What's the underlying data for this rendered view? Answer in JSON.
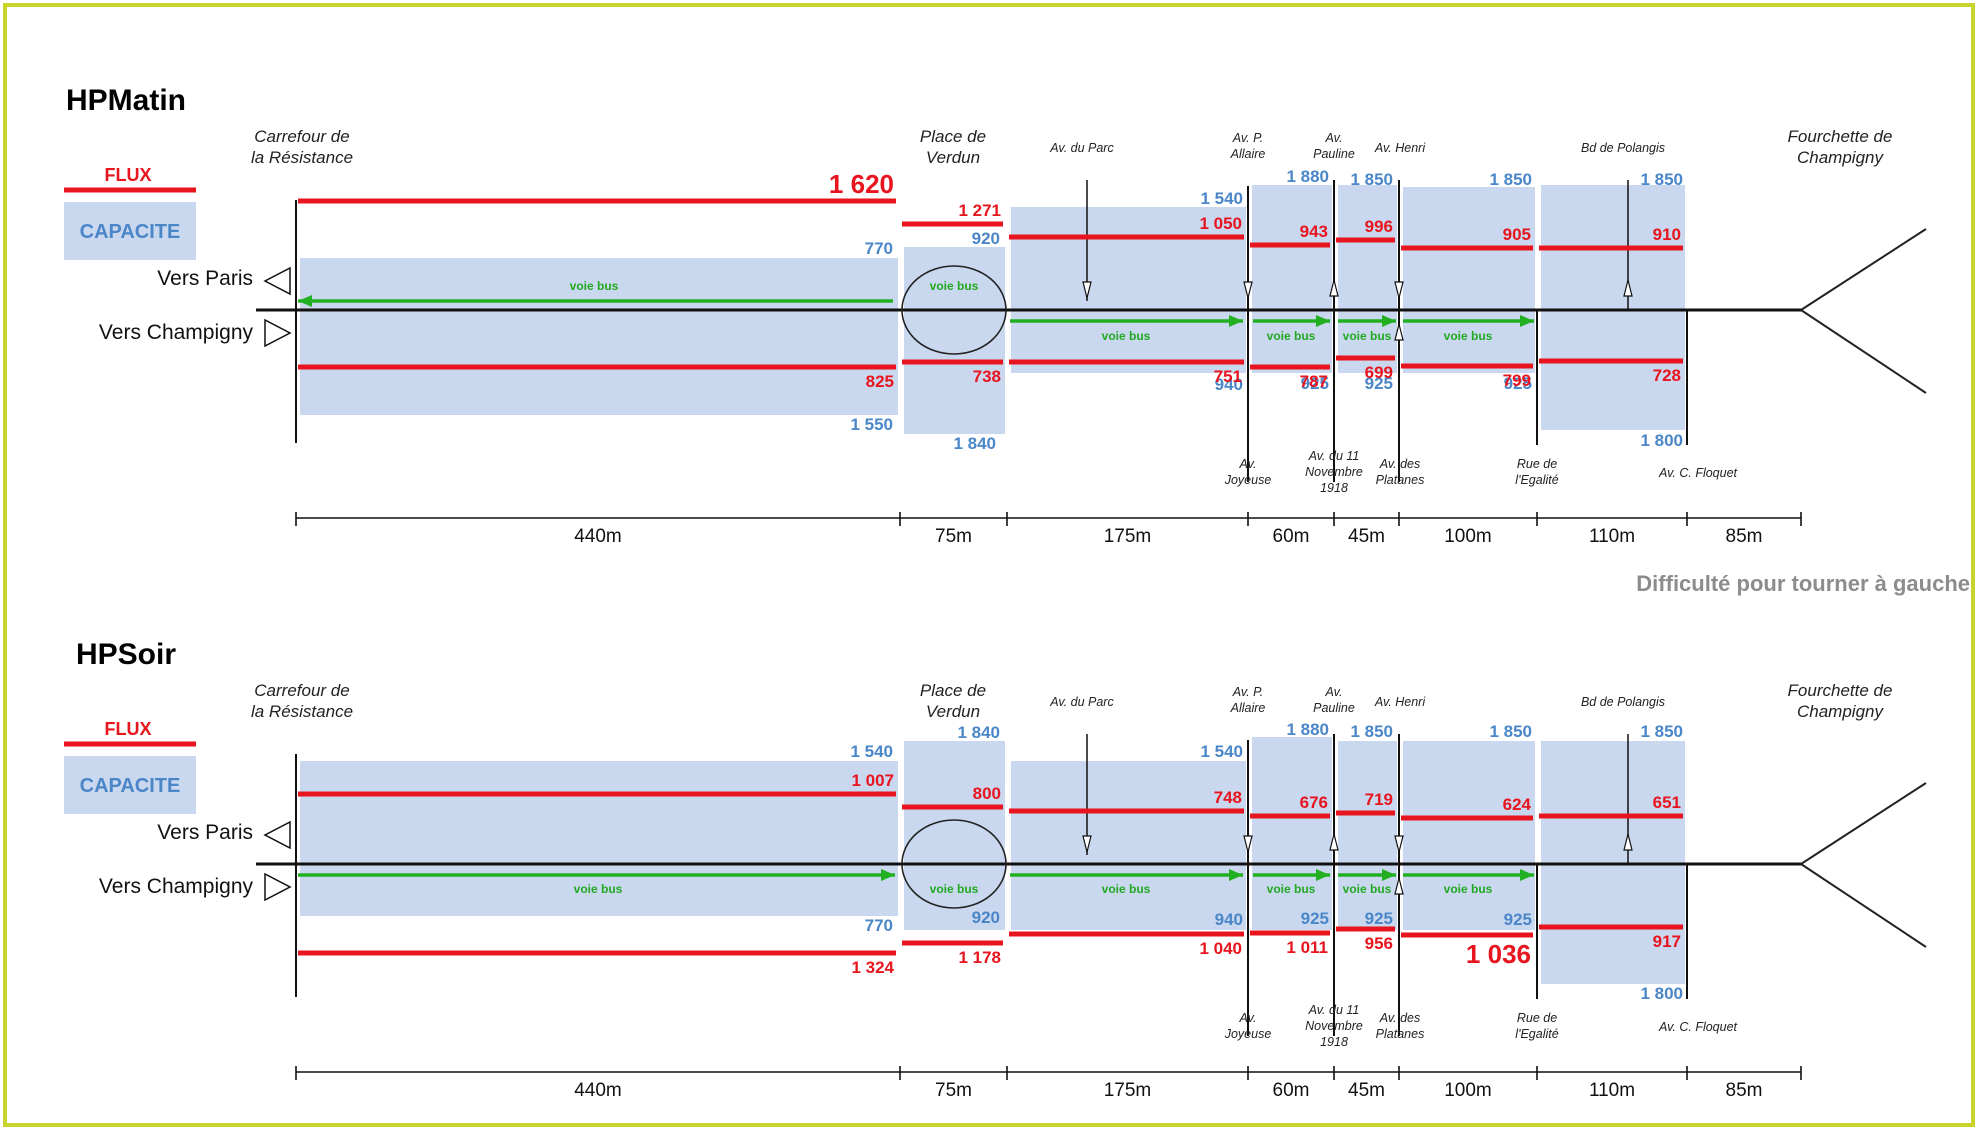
{
  "legend": {
    "flux": "FLUX",
    "capacite": "CAPACITE"
  },
  "directions": {
    "paris": "Vers Paris",
    "champigny": "Vers Champigny"
  },
  "bus_lane": "voie bus",
  "note": "Difficulté pour tourner à gauche",
  "colors": {
    "flux": "#e8141e",
    "capacite": "#c9d8ee",
    "capacite_text": "#4a86c8",
    "bus": "#22b022",
    "frame": "#c8d42a"
  },
  "nodes_top": [
    [
      "Carrefour de",
      "la Résistance"
    ],
    [
      "Place de",
      "Verdun"
    ],
    [
      "Av. du Parc"
    ],
    [
      "Av. P.",
      "Allaire"
    ],
    [
      "Av.",
      "Pauline"
    ],
    [
      "Av. Henri"
    ],
    [
      "Bd de Polangis"
    ],
    [
      "Fourchette de",
      "Champigny"
    ]
  ],
  "nodes_bottom": [
    [
      "Av.",
      "Joyeuse"
    ],
    [
      "Av. du 11",
      "Novembre",
      "1918"
    ],
    [
      "Av. des",
      "Platanes"
    ],
    [
      "Rue de",
      "l'Egalité"
    ],
    [
      "Av. C. Floquet"
    ]
  ],
  "distances": [
    "440m",
    "75m",
    "175m",
    "60m",
    "45m",
    "100m",
    "110m",
    "85m"
  ],
  "panels": [
    {
      "title": "HPMatin",
      "paris": {
        "cap": [
          "770",
          "920",
          "1 540",
          "1 880",
          "1 850",
          "1 850",
          "1 850"
        ],
        "flux": [
          "1 620",
          "1 271",
          "1 050",
          "943",
          "996",
          "905",
          "910"
        ]
      },
      "champigny": {
        "cap": [
          "1 550",
          "1 840",
          "940",
          "925",
          "925",
          "925",
          "1 800"
        ],
        "flux": [
          "825",
          "738",
          "751",
          "787",
          "699",
          "799",
          "728"
        ]
      }
    },
    {
      "title": "HPSoir",
      "paris": {
        "cap": [
          "1 540",
          "1 840",
          "1 540",
          "1 880",
          "1 850",
          "1 850",
          "1 850"
        ],
        "flux": [
          "1 007",
          "800",
          "748",
          "676",
          "719",
          "624",
          "651"
        ]
      },
      "champigny": {
        "cap": [
          "770",
          "920",
          "940",
          "925",
          "925",
          "925",
          "1 800"
        ],
        "flux": [
          "1 324",
          "1 178",
          "1 040",
          "1 011",
          "956",
          "1 036",
          "917"
        ]
      }
    }
  ]
}
